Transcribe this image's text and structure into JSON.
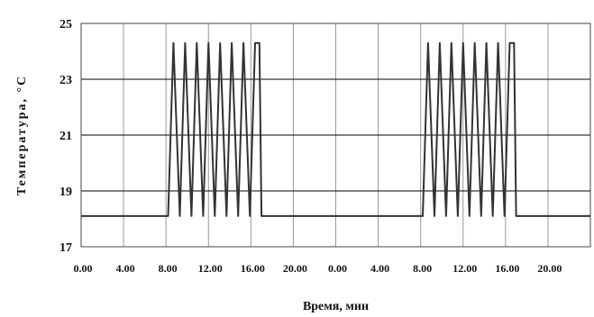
{
  "chart_data": {
    "type": "line",
    "title": "",
    "xlabel": "Время, мин",
    "ylabel": "Температура, °С",
    "x_tick_labels": [
      "0.00",
      "4.00",
      "8.00",
      "12.00",
      "16.00",
      "20.00",
      "0.00",
      "4.00",
      "8.00",
      "12.00",
      "16.00",
      "20.00"
    ],
    "y_ticks": [
      17,
      19,
      21,
      23,
      25
    ],
    "ylim": [
      17,
      25
    ],
    "grid": true,
    "legend": "none",
    "line_color": "#333333",
    "series": [
      {
        "x": [
          0,
          8.2,
          8.7,
          9.3,
          9.8,
          10.4,
          10.9,
          11.5,
          12.0,
          12.6,
          13.1,
          13.7,
          14.2,
          14.8,
          15.3,
          15.9,
          16.4,
          16.8,
          17.0,
          17.0,
          24.0,
          32.2,
          32.7,
          33.3,
          33.8,
          34.4,
          34.9,
          35.5,
          36.0,
          36.6,
          37.1,
          37.7,
          38.2,
          38.8,
          39.3,
          39.9,
          40.4,
          40.8,
          41.0,
          48.0
        ],
        "y": [
          18.1,
          18.1,
          24.3,
          18.1,
          24.3,
          18.1,
          24.3,
          18.1,
          24.3,
          18.1,
          24.3,
          18.1,
          24.3,
          18.1,
          24.3,
          18.1,
          24.3,
          24.3,
          18.1,
          18.1,
          18.1,
          18.1,
          24.3,
          18.1,
          24.3,
          18.1,
          24.3,
          18.1,
          24.3,
          18.1,
          24.3,
          18.1,
          24.3,
          18.1,
          24.3,
          18.1,
          24.3,
          24.3,
          18.1,
          18.1
        ]
      }
    ]
  }
}
